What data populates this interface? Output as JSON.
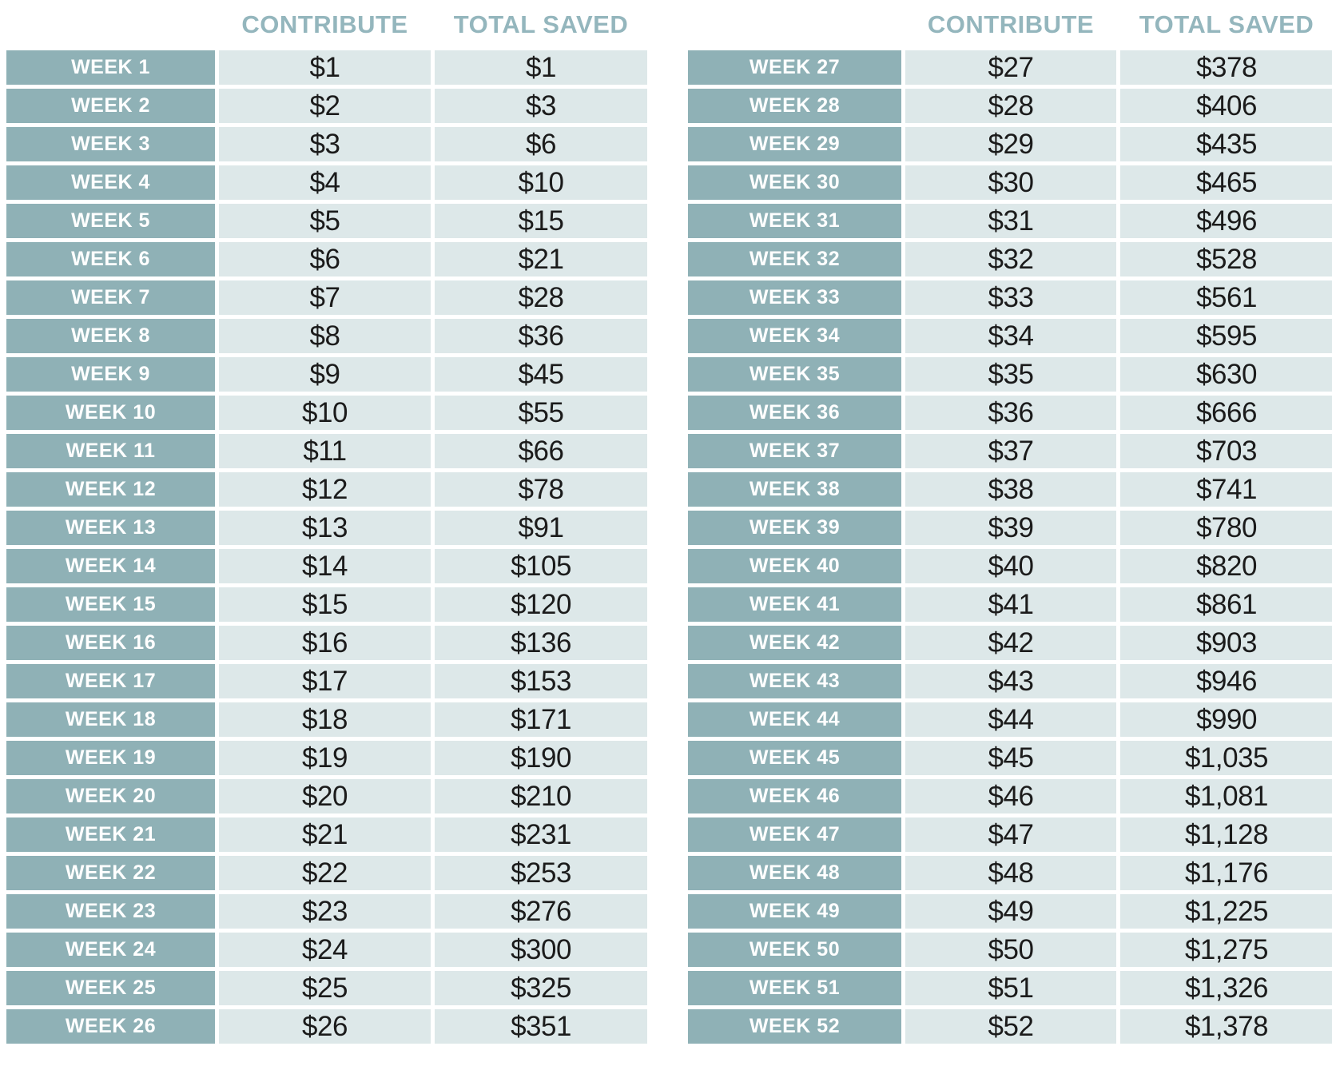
{
  "colors": {
    "page_bg": "#ffffff",
    "week_cell": "#8fb1b6",
    "data_cell": "#dde8e9",
    "header_text": "#94b6bd",
    "week_text": "#ffffff",
    "data_text": "#1b1b1b"
  },
  "tables": [
    {
      "id": "weeks-1-26",
      "headers": {
        "contribute": "CONTRIBUTE",
        "total_saved": "TOTAL SAVED"
      },
      "rows": [
        {
          "week": "WEEK 1",
          "contribute": "$1",
          "total": "$1"
        },
        {
          "week": "WEEK 2",
          "contribute": "$2",
          "total": "$3"
        },
        {
          "week": "WEEK 3",
          "contribute": "$3",
          "total": "$6"
        },
        {
          "week": "WEEK 4",
          "contribute": "$4",
          "total": "$10"
        },
        {
          "week": "WEEK 5",
          "contribute": "$5",
          "total": "$15"
        },
        {
          "week": "WEEK 6",
          "contribute": "$6",
          "total": "$21"
        },
        {
          "week": "WEEK 7",
          "contribute": "$7",
          "total": "$28"
        },
        {
          "week": "WEEK 8",
          "contribute": "$8",
          "total": "$36"
        },
        {
          "week": "WEEK 9",
          "contribute": "$9",
          "total": "$45"
        },
        {
          "week": "WEEK 10",
          "contribute": "$10",
          "total": "$55"
        },
        {
          "week": "WEEK 11",
          "contribute": "$11",
          "total": "$66"
        },
        {
          "week": "WEEK 12",
          "contribute": "$12",
          "total": "$78"
        },
        {
          "week": "WEEK 13",
          "contribute": "$13",
          "total": "$91"
        },
        {
          "week": "WEEK 14",
          "contribute": "$14",
          "total": "$105"
        },
        {
          "week": "WEEK 15",
          "contribute": "$15",
          "total": "$120"
        },
        {
          "week": "WEEK 16",
          "contribute": "$16",
          "total": "$136"
        },
        {
          "week": "WEEK 17",
          "contribute": "$17",
          "total": "$153"
        },
        {
          "week": "WEEK 18",
          "contribute": "$18",
          "total": "$171"
        },
        {
          "week": "WEEK 19",
          "contribute": "$19",
          "total": "$190"
        },
        {
          "week": "WEEK 20",
          "contribute": "$20",
          "total": "$210"
        },
        {
          "week": "WEEK 21",
          "contribute": "$21",
          "total": "$231"
        },
        {
          "week": "WEEK 22",
          "contribute": "$22",
          "total": "$253"
        },
        {
          "week": "WEEK 23",
          "contribute": "$23",
          "total": "$276"
        },
        {
          "week": "WEEK 24",
          "contribute": "$24",
          "total": "$300"
        },
        {
          "week": "WEEK 25",
          "contribute": "$25",
          "total": "$325"
        },
        {
          "week": "WEEK 26",
          "contribute": "$26",
          "total": "$351"
        }
      ]
    },
    {
      "id": "weeks-27-52",
      "headers": {
        "contribute": "CONTRIBUTE",
        "total_saved": "TOTAL SAVED"
      },
      "rows": [
        {
          "week": "WEEK 27",
          "contribute": "$27",
          "total": "$378"
        },
        {
          "week": "WEEK 28",
          "contribute": "$28",
          "total": "$406"
        },
        {
          "week": "WEEK 29",
          "contribute": "$29",
          "total": "$435"
        },
        {
          "week": "WEEK 30",
          "contribute": "$30",
          "total": "$465"
        },
        {
          "week": "WEEK 31",
          "contribute": "$31",
          "total": "$496"
        },
        {
          "week": "WEEK 32",
          "contribute": "$32",
          "total": "$528"
        },
        {
          "week": "WEEK 33",
          "contribute": "$33",
          "total": "$561"
        },
        {
          "week": "WEEK 34",
          "contribute": "$34",
          "total": "$595"
        },
        {
          "week": "WEEK 35",
          "contribute": "$35",
          "total": "$630"
        },
        {
          "week": "WEEK 36",
          "contribute": "$36",
          "total": "$666"
        },
        {
          "week": "WEEK 37",
          "contribute": "$37",
          "total": "$703"
        },
        {
          "week": "WEEK 38",
          "contribute": "$38",
          "total": "$741"
        },
        {
          "week": "WEEK 39",
          "contribute": "$39",
          "total": "$780"
        },
        {
          "week": "WEEK 40",
          "contribute": "$40",
          "total": "$820"
        },
        {
          "week": "WEEK 41",
          "contribute": "$41",
          "total": "$861"
        },
        {
          "week": "WEEK 42",
          "contribute": "$42",
          "total": "$903"
        },
        {
          "week": "WEEK 43",
          "contribute": "$43",
          "total": "$946"
        },
        {
          "week": "WEEK 44",
          "contribute": "$44",
          "total": "$990"
        },
        {
          "week": "WEEK 45",
          "contribute": "$45",
          "total": "$1,035"
        },
        {
          "week": "WEEK 46",
          "contribute": "$46",
          "total": "$1,081"
        },
        {
          "week": "WEEK 47",
          "contribute": "$47",
          "total": "$1,128"
        },
        {
          "week": "WEEK 48",
          "contribute": "$48",
          "total": "$1,176"
        },
        {
          "week": "WEEK 49",
          "contribute": "$49",
          "total": "$1,225"
        },
        {
          "week": "WEEK 50",
          "contribute": "$50",
          "total": "$1,275"
        },
        {
          "week": "WEEK 51",
          "contribute": "$51",
          "total": "$1,326"
        },
        {
          "week": "WEEK 52",
          "contribute": "$52",
          "total": "$1,378"
        }
      ]
    }
  ]
}
